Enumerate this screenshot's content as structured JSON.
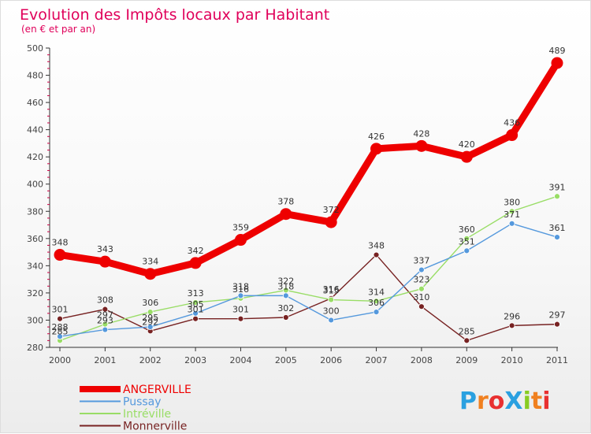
{
  "chart_data": {
    "type": "line",
    "title": "Evolution des Impôts locaux par Habitant",
    "subtitle": "(en € et par an)",
    "x": [
      "2000",
      "2001",
      "2002",
      "2003",
      "2004",
      "2005",
      "2006",
      "2007",
      "2008",
      "2009",
      "2010",
      "2011"
    ],
    "ylim": [
      280,
      500
    ],
    "yticks": [
      280,
      300,
      320,
      340,
      360,
      380,
      400,
      420,
      440,
      460,
      480,
      500
    ],
    "grid": false,
    "legend_position": "bottom-left",
    "series": [
      {
        "name": "ANGERVILLE",
        "color": "#ee0000",
        "values": [
          348,
          343,
          334,
          342,
          359,
          378,
          372,
          426,
          428,
          420,
          436,
          489
        ],
        "labels": [
          "348",
          "343",
          "334",
          "342",
          "359",
          "378",
          "372",
          "426",
          "428",
          "420",
          "436",
          "489"
        ]
      },
      {
        "name": "Pussay",
        "color": "#5599dd",
        "values": [
          288,
          293,
          295,
          305,
          318,
          318,
          300,
          306,
          337,
          351,
          371,
          361
        ],
        "labels": [
          "288",
          "293",
          "295",
          "305",
          "318",
          "318",
          "300",
          "306",
          "337",
          "351",
          "371",
          "361"
        ]
      },
      {
        "name": "Intréville",
        "color": "#99dd66",
        "values": [
          285,
          297,
          306,
          313,
          316,
          322,
          315,
          314,
          323,
          360,
          380,
          391
        ],
        "labels": [
          "285",
          "297",
          "306",
          "313",
          "316",
          "322",
          "315",
          "314",
          "323",
          "360",
          "380",
          "391"
        ]
      },
      {
        "name": "Monnerville",
        "color": "#772222",
        "values": [
          301,
          308,
          292,
          301,
          301,
          302,
          316,
          348,
          310,
          285,
          296,
          297
        ],
        "labels": [
          "301",
          "308",
          "292",
          "301",
          "301",
          "302",
          "316",
          "348",
          "310",
          "285",
          "296",
          "297"
        ]
      }
    ]
  },
  "logo": {
    "text": "ProXiti",
    "letters": [
      "P",
      "r",
      "o",
      "X",
      "i",
      "t",
      "i"
    ],
    "colors": [
      "#2aa0e0",
      "#f08020",
      "#e83030",
      "#2aa0e0",
      "#88cc22",
      "#f08020",
      "#e83030"
    ]
  }
}
